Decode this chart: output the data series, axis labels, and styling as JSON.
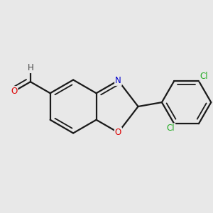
{
  "bg_color": "#e8e8e8",
  "bond_color": "#1a1a1a",
  "bond_width": 1.6,
  "dbo": 0.055,
  "atom_colors": {
    "O": "#dd0000",
    "N": "#0000cc",
    "Cl": "#22aa22",
    "H": "#444444"
  },
  "font_size": 8.5,
  "xlim": [
    0,
    3.2
  ],
  "ylim": [
    0.3,
    3.0
  ]
}
